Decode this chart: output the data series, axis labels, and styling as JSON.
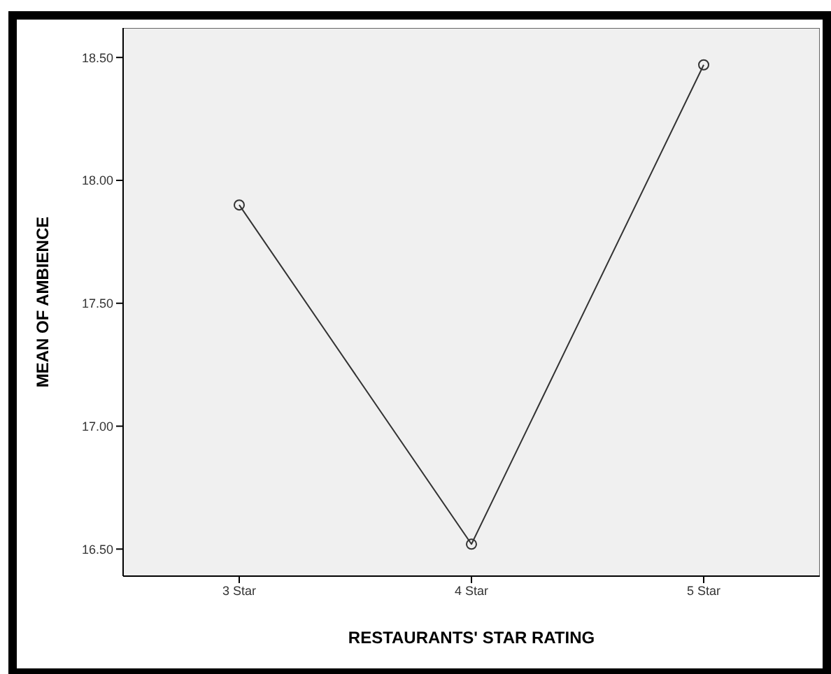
{
  "chart_data": {
    "type": "line",
    "xlabel": "RESTAURANTS'  STAR RATING",
    "ylabel": "MEAN OF  AMBIENCE",
    "categories": [
      "3 Star",
      "4 Star",
      "5 Star"
    ],
    "series": [
      {
        "color": "#333333",
        "values": [
          17.9,
          16.52,
          18.47
        ]
      }
    ],
    "ylim": [
      16.39,
      18.62
    ],
    "yticks": [
      {
        "value": 16.5,
        "label": "16.50"
      },
      {
        "value": 17,
        "label": "17.00"
      },
      {
        "value": 17.5,
        "label": "17.50"
      },
      {
        "value": 18,
        "label": "18.00"
      },
      {
        "value": 18.5,
        "label": "18.50"
      }
    ],
    "marker": "circle",
    "grid": false,
    "legend": false
  }
}
